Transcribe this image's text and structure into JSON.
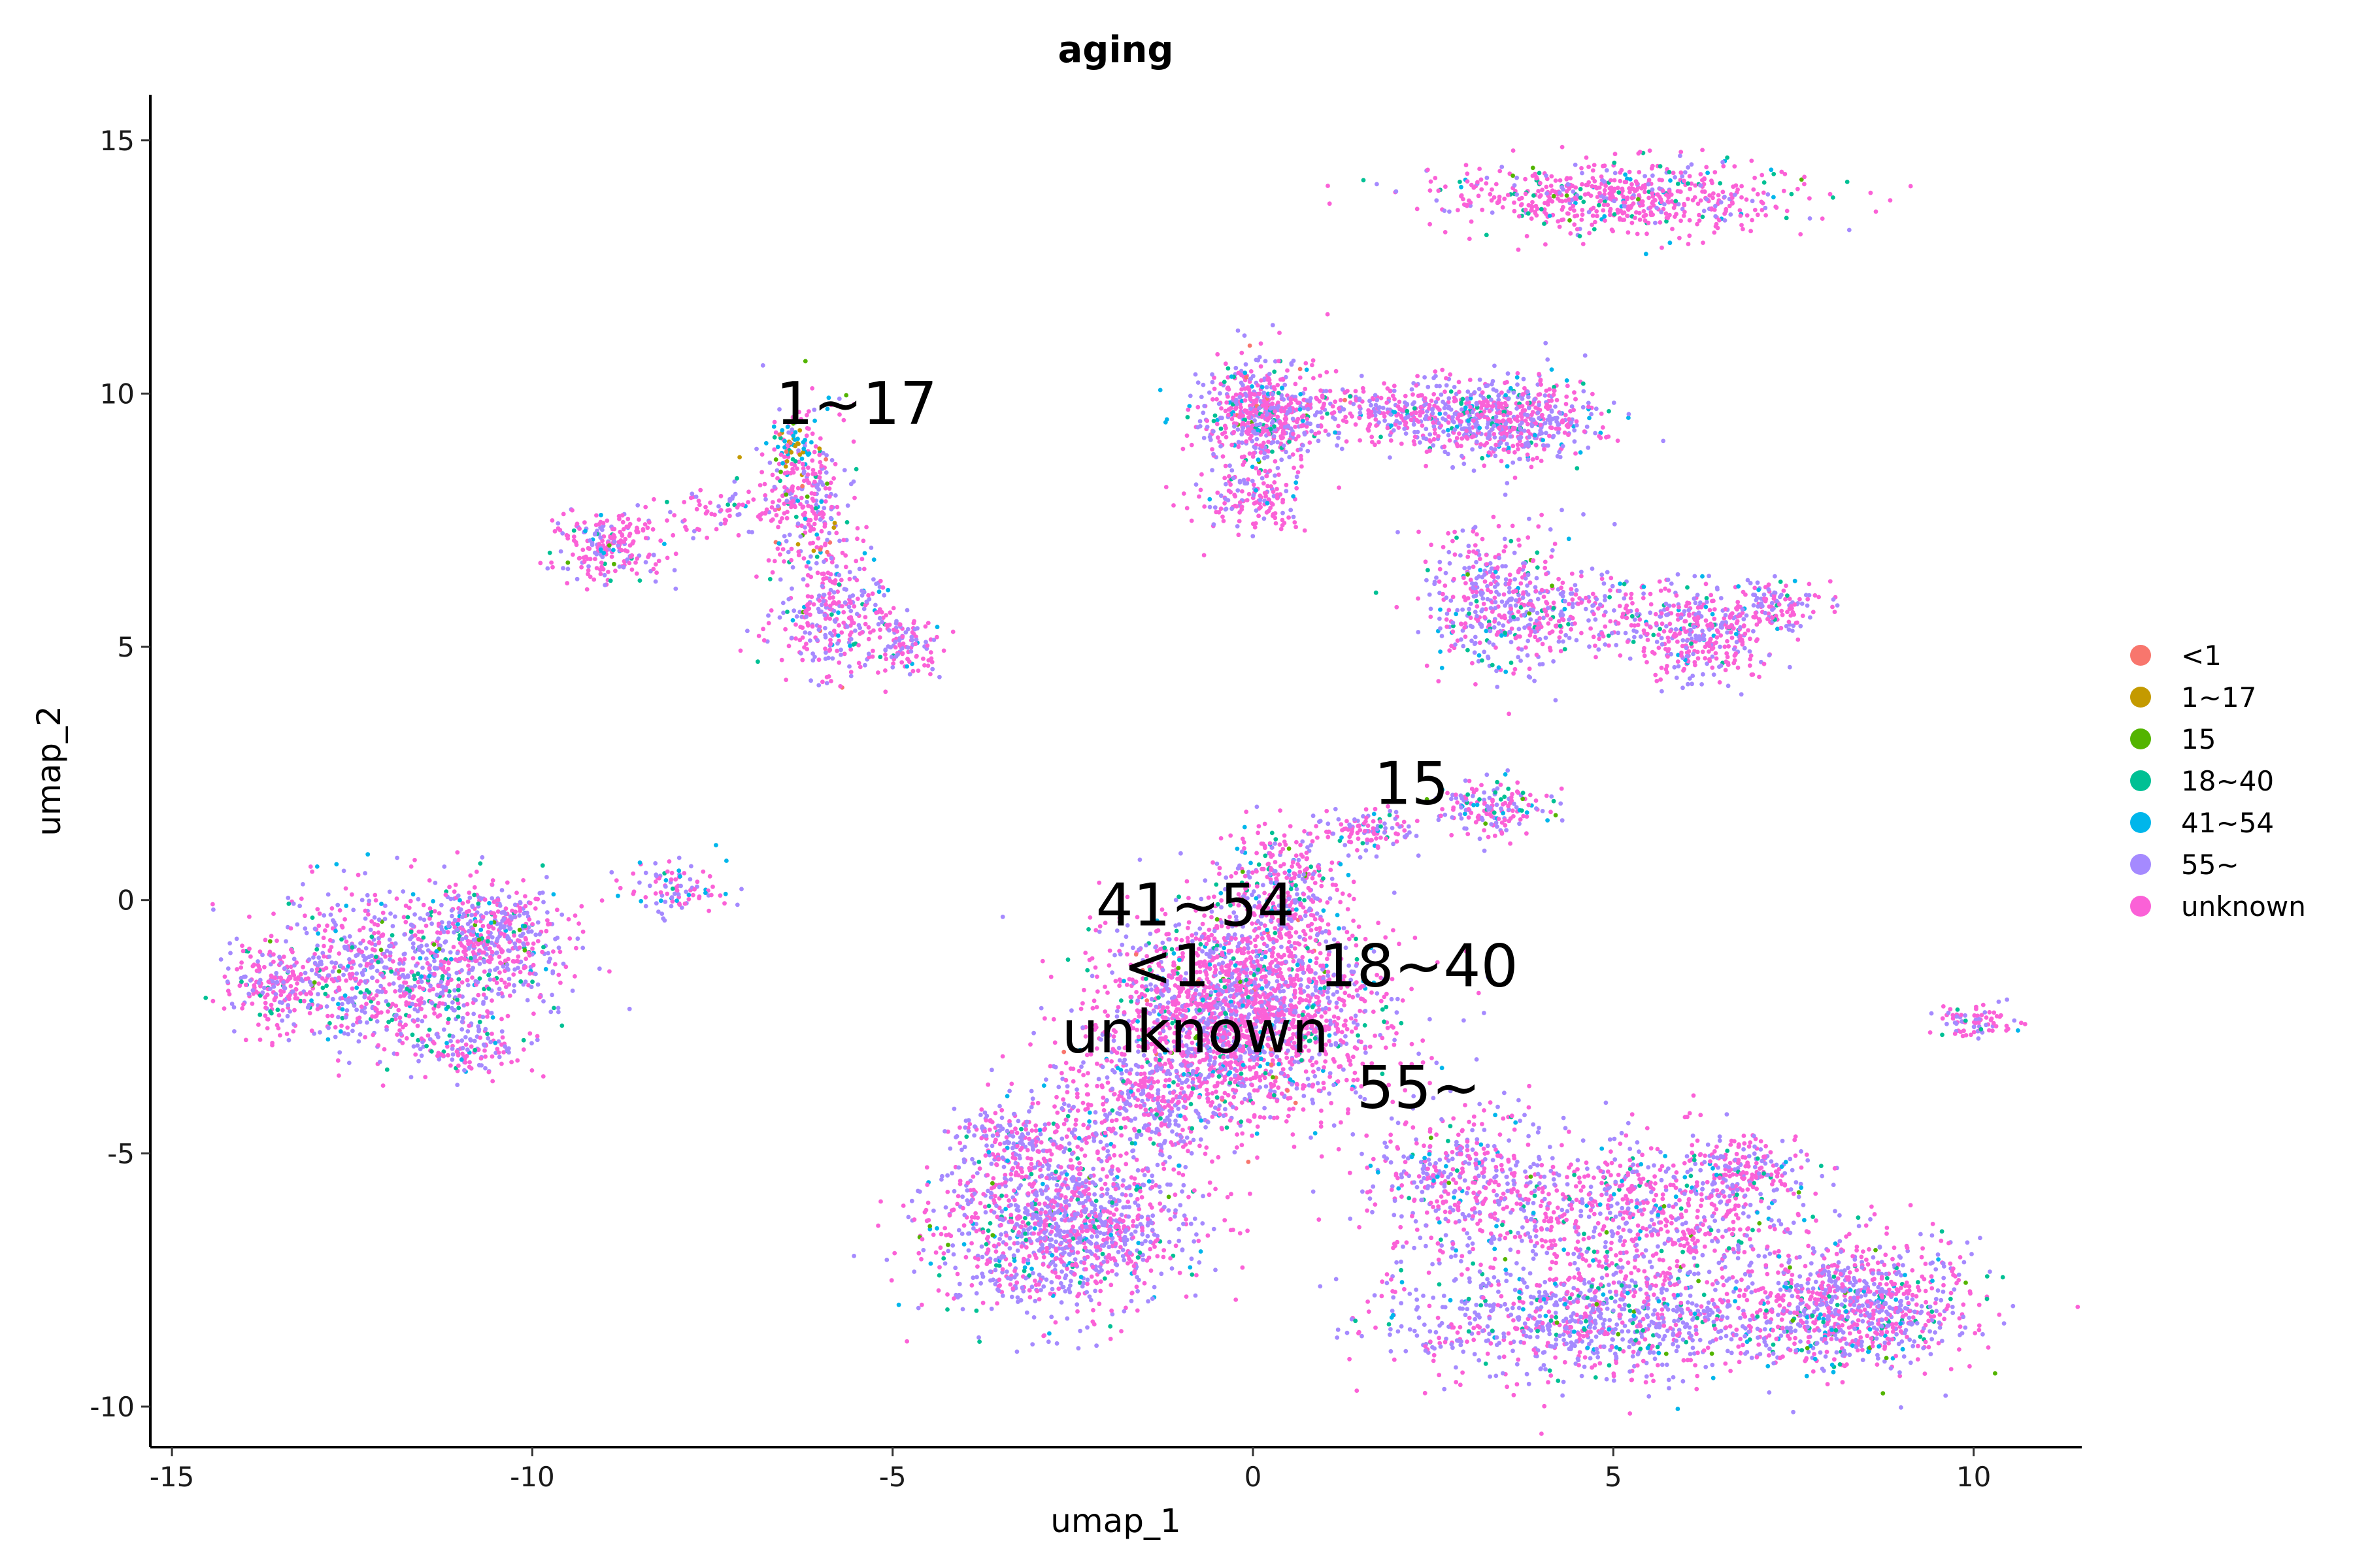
{
  "chart_data": {
    "type": "scatter",
    "title": "aging",
    "xlabel": "umap_1",
    "ylabel": "umap_2",
    "xlim": [
      -15.3,
      11.5
    ],
    "ylim": [
      -10.8,
      15.9
    ],
    "x_ticks": [
      -15,
      -10,
      -5,
      0,
      5,
      10
    ],
    "y_ticks": [
      -10,
      -5,
      0,
      5,
      10,
      15
    ],
    "x_tick_labels": [
      "-15",
      "-10",
      "-5",
      "0",
      "5",
      "10"
    ],
    "y_tick_labels": [
      "-10",
      "-5",
      "0",
      "5",
      "10",
      "15"
    ],
    "grid": false,
    "legend_position": "right",
    "series": [
      {
        "name": "<1",
        "color": "#F8766D"
      },
      {
        "name": "1~17",
        "color": "#C49A00"
      },
      {
        "name": "15",
        "color": "#53B400"
      },
      {
        "name": "18~40",
        "color": "#00C094"
      },
      {
        "name": "41~54",
        "color": "#00B6EB"
      },
      {
        "name": "55~",
        "color": "#A58AFF"
      },
      {
        "name": "unknown",
        "color": "#FB61D7"
      }
    ],
    "cluster_labels": [
      {
        "text": "1~17",
        "x": -5.5,
        "y": 9.4
      },
      {
        "text": "15",
        "x": 2.2,
        "y": 1.9
      },
      {
        "text": "41~54",
        "x": -0.8,
        "y": -0.5
      },
      {
        "text": "<1",
        "x": -1.2,
        "y": -1.7
      },
      {
        "text": "18~40",
        "x": 2.3,
        "y": -1.7
      },
      {
        "text": "unknown",
        "x": -0.8,
        "y": -3.0
      },
      {
        "text": "55~",
        "x": 2.3,
        "y": -4.1
      }
    ],
    "clusters": [
      {
        "cx": 5.0,
        "cy": 13.9,
        "sx": 1.3,
        "sy": 0.35,
        "n": 650,
        "mix": [
          0,
          0,
          0.01,
          0.06,
          0.03,
          0.15,
          0.75
        ]
      },
      {
        "cx": 0.1,
        "cy": 9.6,
        "sx": 0.4,
        "sy": 0.55,
        "n": 500,
        "mix": [
          0.03,
          0,
          0.01,
          0.04,
          0.06,
          0.28,
          0.58
        ]
      },
      {
        "cx": 0.0,
        "cy": 7.9,
        "sx": 0.35,
        "sy": 0.35,
        "n": 150,
        "mix": [
          0,
          0,
          0,
          0.04,
          0.04,
          0.3,
          0.62
        ]
      },
      {
        "cx": 1.9,
        "cy": 9.6,
        "sx": 1.3,
        "sy": 0.3,
        "n": 450,
        "mix": [
          0,
          0,
          0,
          0.05,
          0.05,
          0.4,
          0.5
        ]
      },
      {
        "cx": 3.5,
        "cy": 9.5,
        "sx": 0.65,
        "sy": 0.4,
        "n": 550,
        "mix": [
          0,
          0,
          0,
          0.05,
          0.04,
          0.45,
          0.46
        ]
      },
      {
        "cx": 3.4,
        "cy": 5.9,
        "sx": 0.55,
        "sy": 0.75,
        "n": 420,
        "mix": [
          0,
          0,
          0.01,
          0.06,
          0.05,
          0.43,
          0.45
        ]
      },
      {
        "cx": 4.9,
        "cy": 5.6,
        "sx": 0.9,
        "sy": 0.4,
        "n": 250,
        "mix": [
          0,
          0,
          0,
          0.04,
          0.03,
          0.4,
          0.53
        ]
      },
      {
        "cx": 6.3,
        "cy": 5.2,
        "sx": 0.45,
        "sy": 0.45,
        "n": 300,
        "mix": [
          0,
          0,
          0,
          0.03,
          0.03,
          0.3,
          0.64
        ]
      },
      {
        "cx": 7.3,
        "cy": 5.8,
        "sx": 0.35,
        "sy": 0.25,
        "n": 120,
        "mix": [
          0,
          0,
          0,
          0.03,
          0.03,
          0.4,
          0.54
        ]
      },
      {
        "cx": -9.0,
        "cy": 7.0,
        "sx": 0.45,
        "sy": 0.35,
        "n": 220,
        "mix": [
          0,
          0,
          0.01,
          0.04,
          0.02,
          0.3,
          0.63
        ]
      },
      {
        "cx": -7.2,
        "cy": 7.7,
        "sx": 0.6,
        "sy": 0.25,
        "n": 80,
        "mix": [
          0,
          0,
          0,
          0.03,
          0.02,
          0.25,
          0.7
        ]
      },
      {
        "cx": -6.2,
        "cy": 8.0,
        "sx": 0.35,
        "sy": 0.9,
        "n": 320,
        "mix": [
          0.02,
          0.02,
          0.02,
          0.05,
          0.05,
          0.3,
          0.54
        ]
      },
      {
        "cx": -6.4,
        "cy": 9.0,
        "sx": 0.15,
        "sy": 0.2,
        "n": 50,
        "mix": [
          0.05,
          0.15,
          0.1,
          0.2,
          0.4,
          0.05,
          0.05
        ]
      },
      {
        "cx": -5.8,
        "cy": 5.6,
        "sx": 0.45,
        "sy": 0.6,
        "n": 300,
        "mix": [
          0.01,
          0,
          0.01,
          0.06,
          0.03,
          0.35,
          0.54
        ]
      },
      {
        "cx": -4.8,
        "cy": 5.0,
        "sx": 0.25,
        "sy": 0.3,
        "n": 100,
        "mix": [
          0,
          0,
          0.01,
          0.06,
          0.03,
          0.4,
          0.5
        ]
      },
      {
        "cx": -13.6,
        "cy": -1.7,
        "sx": 0.3,
        "sy": 0.35,
        "n": 150,
        "mix": [
          0,
          0,
          0,
          0.05,
          0.03,
          0.3,
          0.62
        ]
      },
      {
        "cx": -11.8,
        "cy": -1.4,
        "sx": 1.0,
        "sy": 0.8,
        "n": 1000,
        "mix": [
          0,
          0,
          0.01,
          0.08,
          0.04,
          0.42,
          0.45
        ]
      },
      {
        "cx": -10.5,
        "cy": -0.6,
        "sx": 0.4,
        "sy": 0.5,
        "n": 300,
        "mix": [
          0,
          0,
          0.01,
          0.06,
          0.04,
          0.45,
          0.44
        ]
      },
      {
        "cx": -10.9,
        "cy": -3.0,
        "sx": 0.35,
        "sy": 0.25,
        "n": 100,
        "mix": [
          0,
          0,
          0.01,
          0.08,
          0.04,
          0.45,
          0.42
        ]
      },
      {
        "cx": -8.0,
        "cy": 0.2,
        "sx": 0.4,
        "sy": 0.25,
        "n": 100,
        "mix": [
          0,
          0,
          0,
          0.05,
          0.1,
          0.4,
          0.45
        ]
      },
      {
        "cx": -0.2,
        "cy": -2.2,
        "sx": 0.95,
        "sy": 0.95,
        "n": 2200,
        "mix": [
          0.01,
          0,
          0.01,
          0.04,
          0.04,
          0.28,
          0.62
        ]
      },
      {
        "cx": 0.4,
        "cy": 0.2,
        "sx": 0.45,
        "sy": 0.7,
        "n": 350,
        "mix": [
          0,
          0,
          0.01,
          0.05,
          0.05,
          0.3,
          0.59
        ]
      },
      {
        "cx": 1.6,
        "cy": 1.4,
        "sx": 0.3,
        "sy": 0.2,
        "n": 110,
        "mix": [
          0,
          0,
          0.02,
          0.06,
          0.06,
          0.35,
          0.51
        ]
      },
      {
        "cx": 3.3,
        "cy": 1.8,
        "sx": 0.35,
        "sy": 0.3,
        "n": 170,
        "mix": [
          0,
          0,
          0.01,
          0.06,
          0.06,
          0.35,
          0.52
        ]
      },
      {
        "cx": -2.6,
        "cy": -6.5,
        "sx": 0.9,
        "sy": 0.85,
        "n": 1300,
        "mix": [
          0,
          0,
          0.01,
          0.05,
          0.03,
          0.45,
          0.46
        ]
      },
      {
        "cx": -3.3,
        "cy": -4.8,
        "sx": 0.4,
        "sy": 0.35,
        "n": 200,
        "mix": [
          0,
          0,
          0,
          0.05,
          0.03,
          0.5,
          0.42
        ]
      },
      {
        "cx": -1.5,
        "cy": -4.0,
        "sx": 0.7,
        "sy": 0.6,
        "n": 450,
        "mix": [
          0,
          0,
          0,
          0.05,
          0.03,
          0.4,
          0.52
        ]
      },
      {
        "cx": 2.9,
        "cy": -5.5,
        "sx": 0.7,
        "sy": 0.8,
        "n": 450,
        "mix": [
          0,
          0,
          0.01,
          0.05,
          0.04,
          0.5,
          0.4
        ]
      },
      {
        "cx": 5.5,
        "cy": -6.2,
        "sx": 1.2,
        "sy": 0.7,
        "n": 800,
        "mix": [
          0,
          0,
          0.01,
          0.05,
          0.03,
          0.3,
          0.61
        ]
      },
      {
        "cx": 4.7,
        "cy": -8.3,
        "sx": 1.4,
        "sy": 0.6,
        "n": 1000,
        "mix": [
          0,
          0,
          0.01,
          0.06,
          0.04,
          0.55,
          0.34
        ]
      },
      {
        "cx": 8.4,
        "cy": -8.0,
        "sx": 0.8,
        "sy": 0.6,
        "n": 900,
        "mix": [
          0,
          0,
          0.01,
          0.07,
          0.05,
          0.4,
          0.47
        ]
      },
      {
        "cx": 6.8,
        "cy": -5.3,
        "sx": 0.45,
        "sy": 0.3,
        "n": 150,
        "mix": [
          0,
          0,
          0,
          0.05,
          0.04,
          0.4,
          0.51
        ]
      },
      {
        "cx": 10.0,
        "cy": -2.4,
        "sx": 0.3,
        "sy": 0.15,
        "n": 80,
        "mix": [
          0,
          0,
          0,
          0.05,
          0.04,
          0.4,
          0.51
        ]
      }
    ]
  }
}
